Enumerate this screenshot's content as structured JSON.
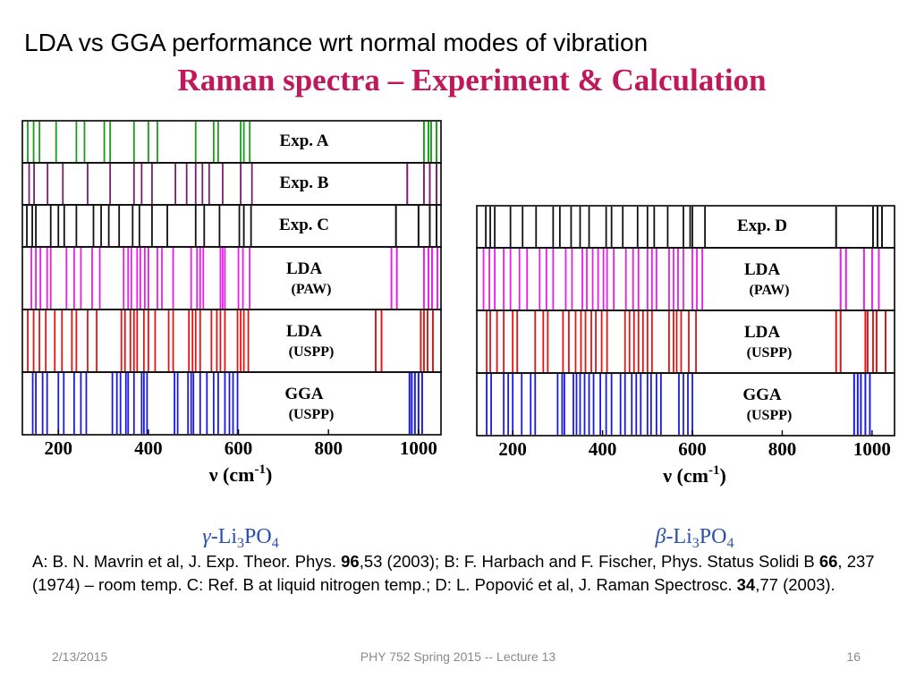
{
  "slide": {
    "title": "LDA vs GGA performance wrt normal modes of vibration",
    "subtitle": "Raman spectra – Experiment & Calculation",
    "footer_date": "2/13/2015",
    "footer_center": "PHY 752  Spring 2015 -- Lecture 13",
    "footer_page": "16"
  },
  "references": [
    {
      "text": "A:  B. N. Mavrin et al,  J. Exp. Theor. Phys. ",
      "bold": false
    },
    {
      "text": "96",
      "bold": true
    },
    {
      "text": ",53 (2003); B: F. Harbach and F. Fischer, Phys. Status Solidi B ",
      "bold": false
    },
    {
      "text": "66",
      "bold": true
    },
    {
      "text": ", 237 (1974) – room temp.  C: Ref. B at liquid nitrogen temp.; D: L. Popović et al, J. Raman Spectrosc. ",
      "bold": false
    },
    {
      "text": "34",
      "bold": true
    },
    {
      "text": ",77 (2003).",
      "bold": false
    }
  ],
  "chart_data": [
    {
      "type": "stick_spectrum",
      "caption": "γ-Li3PO4",
      "caption_parts": {
        "greek": "γ",
        "base": "-Li",
        "sub1": "3",
        "mid": "PO",
        "sub2": "4"
      },
      "xlabel": "ν (cm-1)",
      "xlabel_parts": {
        "main": "ν (cm",
        "sup": "-1",
        "close": ")"
      },
      "xlim": [
        120,
        1050
      ],
      "xticks": [
        200,
        400,
        600,
        800,
        1000
      ],
      "panels": [
        {
          "label": "Exp. A",
          "sublabel": "",
          "color": "#1a9e1a",
          "lines": [
            132,
            145,
            158,
            195,
            240,
            258,
            302,
            315,
            368,
            400,
            420,
            505,
            545,
            555,
            605,
            612,
            625,
            1012,
            1022,
            1028,
            1040
          ]
        },
        {
          "label": "Exp. B",
          "sublabel": "",
          "color": "#7a1f6a",
          "lines": [
            135,
            146,
            176,
            210,
            265,
            315,
            368,
            385,
            408,
            460,
            485,
            505,
            520,
            535,
            565,
            605,
            630,
            715,
            840,
            975,
            1012,
            1025,
            1040
          ]
        },
        {
          "label": "Exp. C",
          "sublabel": "",
          "color": "#111111",
          "lines": [
            130,
            142,
            150,
            183,
            200,
            213,
            240,
            278,
            295,
            312,
            335,
            365,
            380,
            408,
            442,
            505,
            524,
            558,
            602,
            612,
            628,
            840,
            950,
            1000,
            1025,
            1040
          ]
        },
        {
          "label": "LDA",
          "sublabel": "(PAW)",
          "color": "#e81ee8",
          "lines": [
            140,
            150,
            160,
            175,
            183,
            218,
            235,
            250,
            275,
            292,
            345,
            355,
            362,
            375,
            382,
            392,
            400,
            420,
            430,
            455,
            495,
            508,
            515,
            522,
            560,
            565,
            570,
            600,
            610,
            625,
            940,
            952,
            1012,
            1022,
            1030,
            1042
          ]
        },
        {
          "label": "LDA",
          "sublabel": "(USPP)",
          "color": "#e01515",
          "lines": [
            132,
            145,
            158,
            172,
            192,
            208,
            230,
            240,
            265,
            285,
            340,
            348,
            360,
            368,
            375,
            390,
            400,
            415,
            445,
            455,
            490,
            498,
            505,
            515,
            540,
            552,
            560,
            570,
            598,
            605,
            612,
            622,
            905,
            918,
            1005,
            1012,
            1020,
            1032
          ]
        },
        {
          "label": "GGA",
          "sublabel": "(USPP)",
          "color": "#1a1ae0",
          "lines": [
            143,
            150,
            165,
            175,
            200,
            212,
            235,
            250,
            262,
            320,
            330,
            338,
            350,
            355,
            368,
            385,
            390,
            397,
            458,
            465,
            488,
            495,
            500,
            515,
            530,
            545,
            555,
            570,
            580,
            588,
            598,
            880,
            893,
            980,
            985,
            992,
            1000,
            1008
          ]
        }
      ]
    },
    {
      "type": "stick_spectrum",
      "caption": "β-Li3PO4",
      "caption_parts": {
        "greek": "β",
        "base": "-Li",
        "sub1": "3",
        "mid": "PO",
        "sub2": "4"
      },
      "xlabel": "ν (cm-1)",
      "xlabel_parts": {
        "main": "ν (cm",
        "sup": "-1",
        "close": ")"
      },
      "xlim": [
        120,
        1050
      ],
      "xticks": [
        200,
        400,
        600,
        800,
        1000
      ],
      "panels": [
        {
          "label": "Exp. D",
          "sublabel": "",
          "color": "#111111",
          "lines": [
            140,
            150,
            160,
            195,
            222,
            252,
            290,
            305,
            330,
            350,
            370,
            408,
            420,
            445,
            478,
            500,
            515,
            545,
            580,
            595,
            600,
            628,
            700,
            920,
            1002,
            1012,
            1022
          ]
        },
        {
          "label": "LDA",
          "sublabel": "(PAW)",
          "color": "#e81ee8",
          "lines": [
            135,
            148,
            160,
            180,
            195,
            215,
            232,
            260,
            275,
            290,
            318,
            332,
            355,
            365,
            378,
            390,
            402,
            410,
            425,
            452,
            468,
            480,
            500,
            510,
            520,
            548,
            558,
            568,
            580,
            600,
            610,
            622,
            930,
            942,
            982,
            1000,
            1015
          ]
        },
        {
          "label": "LDA",
          "sublabel": "(USPP)",
          "color": "#e01515",
          "lines": [
            142,
            150,
            165,
            180,
            200,
            210,
            250,
            268,
            278,
            312,
            325,
            340,
            352,
            362,
            375,
            385,
            398,
            410,
            450,
            460,
            470,
            480,
            490,
            500,
            510,
            548,
            558,
            565,
            575,
            592,
            608,
            920,
            930,
            985,
            990,
            1002,
            1010,
            1030
          ]
        },
        {
          "label": "GGA",
          "sublabel": "(USPP)",
          "color": "#1a1ae0",
          "lines": [
            142,
            152,
            180,
            190,
            200,
            220,
            240,
            250,
            300,
            310,
            315,
            335,
            342,
            350,
            360,
            370,
            380,
            395,
            408,
            420,
            440,
            450,
            465,
            475,
            485,
            500,
            508,
            520,
            530,
            570,
            580,
            590,
            600,
            875,
            888,
            960,
            968,
            975,
            985,
            995
          ]
        }
      ]
    }
  ]
}
